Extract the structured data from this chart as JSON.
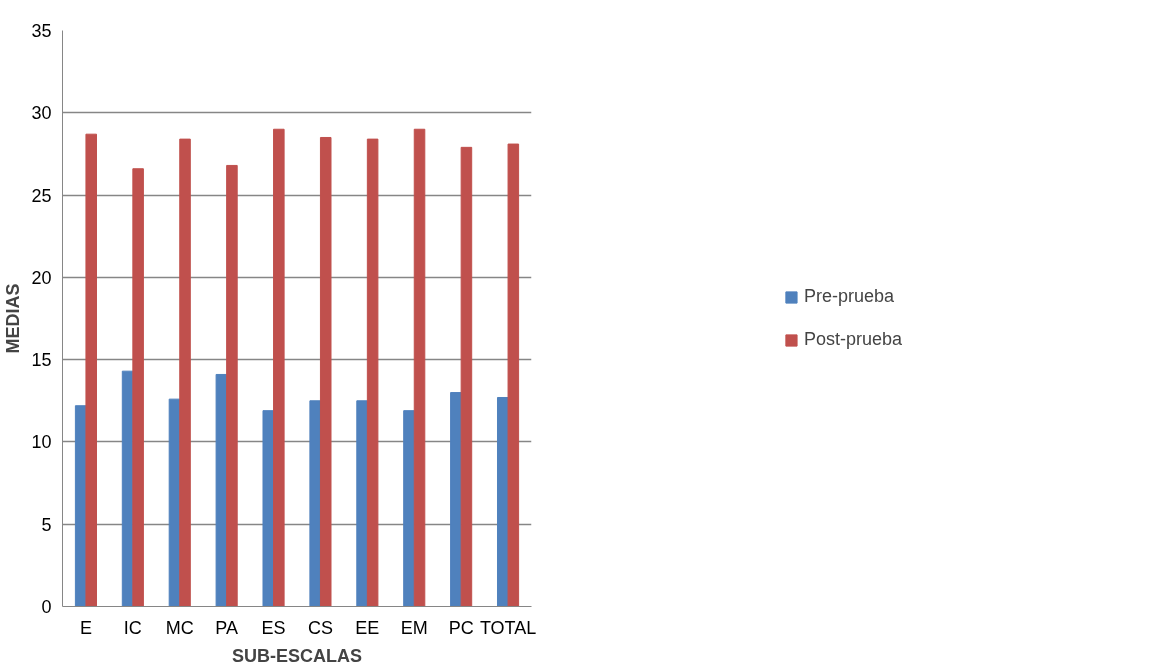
{
  "chart_data": {
    "type": "bar",
    "xlabel": "SUB-ESCALAS",
    "ylabel": "MEDIAS",
    "categories": [
      "E",
      "IC",
      "MC",
      "PA",
      "ES",
      "CS",
      "EE",
      "EM",
      "PC",
      "TOTAL"
    ],
    "series": [
      {
        "name": "Pre-prueba",
        "color": "#4f81bd",
        "values": [
          12.2,
          14.3,
          12.6,
          14.1,
          11.9,
          12.5,
          12.5,
          11.9,
          13.0,
          12.7
        ]
      },
      {
        "name": "Post-prueba",
        "color": "#c0504d",
        "values": [
          28.7,
          26.6,
          28.4,
          26.8,
          29.0,
          28.5,
          28.4,
          29.0,
          27.9,
          28.1
        ]
      }
    ],
    "ylim": [
      0,
      35
    ],
    "yticks": [
      0,
      5,
      10,
      15,
      20,
      25,
      30,
      35
    ],
    "grid": "y",
    "legend": "right"
  }
}
